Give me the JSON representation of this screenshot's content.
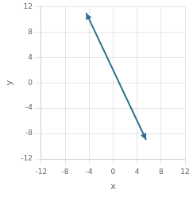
{
  "chart_data": {
    "type": "line",
    "x": [
      -4.5,
      5.5
    ],
    "values": [
      11.0,
      -9.0
    ],
    "color": "#2e6f8e",
    "marker": "arrow",
    "xlabel": "x",
    "ylabel": "y",
    "xlim": [
      -12,
      12
    ],
    "ylim": [
      -12,
      12
    ],
    "xticks": [
      -12,
      -8,
      -4,
      0,
      4,
      8,
      12
    ],
    "yticks": [
      -12,
      -8,
      -4,
      0,
      4,
      8,
      12
    ],
    "grid": true
  }
}
